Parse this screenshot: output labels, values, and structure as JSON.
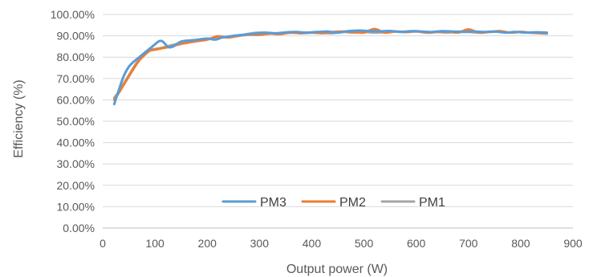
{
  "chart_data": {
    "type": "line",
    "title": "",
    "xlabel": "Output power (W)",
    "ylabel": "Efficiency (%)",
    "xlim": [
      0,
      900
    ],
    "ylim": [
      0,
      1
    ],
    "x_ticks": [
      "0",
      "100",
      "200",
      "300",
      "400",
      "500",
      "600",
      "700",
      "800",
      "900"
    ],
    "y_ticks": [
      "0.00%",
      "10.00%",
      "20.00%",
      "30.00%",
      "40.00%",
      "50.00%",
      "60.00%",
      "70.00%",
      "80.00%",
      "90.00%",
      "100.00%"
    ],
    "grid": "horizontal",
    "legend_position": "bottom-center",
    "series": [
      {
        "name": "PM3",
        "color": "#5B9BD5",
        "points": [
          [
            22,
            0.58
          ],
          [
            30,
            0.64
          ],
          [
            40,
            0.71
          ],
          [
            50,
            0.755
          ],
          [
            60,
            0.78
          ],
          [
            70,
            0.8
          ],
          [
            80,
            0.82
          ],
          [
            90,
            0.84
          ],
          [
            100,
            0.86
          ],
          [
            108,
            0.875
          ],
          [
            115,
            0.873
          ],
          [
            125,
            0.848
          ],
          [
            135,
            0.85
          ],
          [
            150,
            0.873
          ],
          [
            175,
            0.88
          ],
          [
            200,
            0.887
          ],
          [
            215,
            0.882
          ],
          [
            230,
            0.893
          ],
          [
            250,
            0.9
          ],
          [
            270,
            0.905
          ],
          [
            290,
            0.91
          ],
          [
            310,
            0.915
          ],
          [
            330,
            0.912
          ],
          [
            350,
            0.916
          ],
          [
            370,
            0.918
          ],
          [
            390,
            0.915
          ],
          [
            410,
            0.918
          ],
          [
            430,
            0.92
          ],
          [
            450,
            0.915
          ],
          [
            470,
            0.922
          ],
          [
            490,
            0.925
          ],
          [
            510,
            0.922
          ],
          [
            530,
            0.921
          ],
          [
            550,
            0.923
          ],
          [
            570,
            0.918
          ],
          [
            590,
            0.922
          ],
          [
            610,
            0.92
          ],
          [
            630,
            0.918
          ],
          [
            650,
            0.922
          ],
          [
            670,
            0.92
          ],
          [
            690,
            0.918
          ],
          [
            710,
            0.92
          ],
          [
            730,
            0.918
          ],
          [
            750,
            0.92
          ],
          [
            770,
            0.915
          ],
          [
            790,
            0.918
          ],
          [
            810,
            0.915
          ],
          [
            830,
            0.917
          ],
          [
            850,
            0.915
          ]
        ]
      },
      {
        "name": "PM2",
        "color": "#ED7D31",
        "points": [
          [
            22,
            0.6
          ],
          [
            30,
            0.63
          ],
          [
            40,
            0.67
          ],
          [
            50,
            0.71
          ],
          [
            60,
            0.75
          ],
          [
            70,
            0.785
          ],
          [
            80,
            0.81
          ],
          [
            90,
            0.83
          ],
          [
            100,
            0.835
          ],
          [
            110,
            0.84
          ],
          [
            120,
            0.845
          ],
          [
            130,
            0.85
          ],
          [
            150,
            0.862
          ],
          [
            175,
            0.873
          ],
          [
            200,
            0.882
          ],
          [
            220,
            0.898
          ],
          [
            240,
            0.892
          ],
          [
            260,
            0.9
          ],
          [
            280,
            0.905
          ],
          [
            300,
            0.905
          ],
          [
            320,
            0.91
          ],
          [
            340,
            0.908
          ],
          [
            360,
            0.915
          ],
          [
            380,
            0.912
          ],
          [
            400,
            0.915
          ],
          [
            420,
            0.912
          ],
          [
            440,
            0.918
          ],
          [
            460,
            0.92
          ],
          [
            480,
            0.918
          ],
          [
            500,
            0.915
          ],
          [
            520,
            0.932
          ],
          [
            540,
            0.915
          ],
          [
            560,
            0.92
          ],
          [
            580,
            0.918
          ],
          [
            600,
            0.922
          ],
          [
            620,
            0.915
          ],
          [
            640,
            0.918
          ],
          [
            660,
            0.92
          ],
          [
            680,
            0.915
          ],
          [
            700,
            0.93
          ],
          [
            720,
            0.915
          ],
          [
            740,
            0.918
          ],
          [
            760,
            0.922
          ],
          [
            780,
            0.915
          ],
          [
            800,
            0.918
          ],
          [
            820,
            0.915
          ],
          [
            850,
            0.913
          ]
        ]
      },
      {
        "name": "PM1",
        "color": "#A5A5A5",
        "points": [
          [
            22,
            0.61
          ],
          [
            30,
            0.635
          ],
          [
            40,
            0.675
          ],
          [
            50,
            0.715
          ],
          [
            60,
            0.755
          ],
          [
            70,
            0.79
          ],
          [
            80,
            0.82
          ],
          [
            90,
            0.835
          ],
          [
            100,
            0.838
          ],
          [
            110,
            0.842
          ],
          [
            120,
            0.848
          ],
          [
            130,
            0.855
          ],
          [
            150,
            0.865
          ],
          [
            175,
            0.875
          ],
          [
            200,
            0.885
          ],
          [
            220,
            0.89
          ],
          [
            240,
            0.895
          ],
          [
            260,
            0.9
          ],
          [
            280,
            0.91
          ],
          [
            300,
            0.915
          ],
          [
            320,
            0.912
          ],
          [
            340,
            0.91
          ],
          [
            360,
            0.915
          ],
          [
            380,
            0.912
          ],
          [
            400,
            0.915
          ],
          [
            420,
            0.913
          ],
          [
            440,
            0.912
          ],
          [
            460,
            0.918
          ],
          [
            480,
            0.915
          ],
          [
            500,
            0.918
          ],
          [
            520,
            0.915
          ],
          [
            540,
            0.917
          ],
          [
            560,
            0.92
          ],
          [
            580,
            0.917
          ],
          [
            600,
            0.92
          ],
          [
            620,
            0.915
          ],
          [
            640,
            0.918
          ],
          [
            660,
            0.915
          ],
          [
            680,
            0.92
          ],
          [
            700,
            0.918
          ],
          [
            720,
            0.915
          ],
          [
            740,
            0.918
          ],
          [
            760,
            0.92
          ],
          [
            780,
            0.915
          ],
          [
            800,
            0.918
          ],
          [
            820,
            0.914
          ],
          [
            850,
            0.91
          ]
        ]
      }
    ]
  }
}
